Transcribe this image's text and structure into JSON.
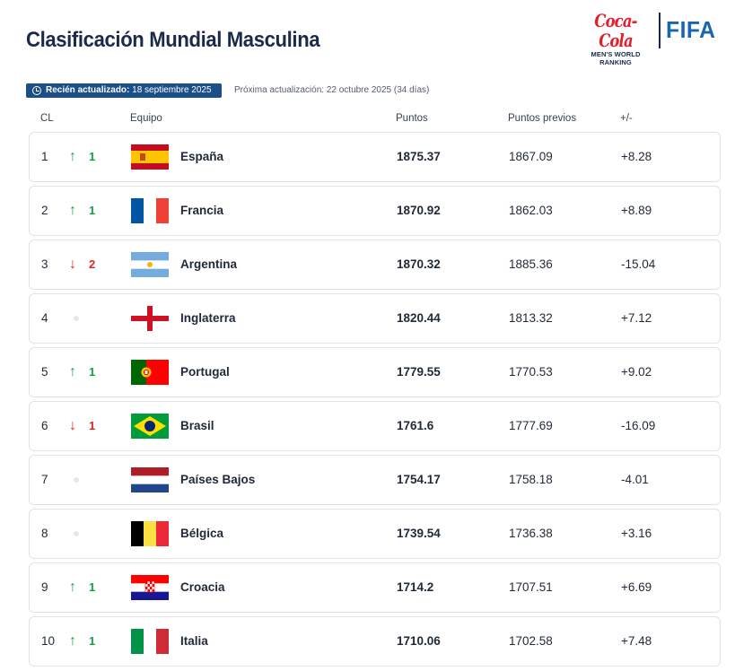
{
  "page": {
    "title": "Clasificación Mundial Masculina"
  },
  "brand": {
    "coca_cola": "Coca-Cola",
    "ranking_line1": "MEN'S WORLD",
    "ranking_line2": "RANKING",
    "fifa": "FIFA"
  },
  "update": {
    "badge_label": "Recién actualizado:",
    "badge_date": "18 septiembre 2025",
    "next_text": "Próxima actualización: 22 octubre 2025 (34 días)"
  },
  "table": {
    "headers": {
      "rank": "CL",
      "team": "Equipo",
      "points": "Puntos",
      "prev_points": "Puntos previos",
      "diff": "+/-"
    },
    "rows": [
      {
        "rank": "1",
        "move_dir": "up",
        "move": "1",
        "team": "España",
        "flag": "spain-flag",
        "points": "1875.37",
        "prev_points": "1867.09",
        "diff": "+8.28"
      },
      {
        "rank": "2",
        "move_dir": "up",
        "move": "1",
        "team": "Francia",
        "flag": "france-flag",
        "points": "1870.92",
        "prev_points": "1862.03",
        "diff": "+8.89"
      },
      {
        "rank": "3",
        "move_dir": "down",
        "move": "2",
        "team": "Argentina",
        "flag": "argentina-flag",
        "points": "1870.32",
        "prev_points": "1885.36",
        "diff": "-15.04"
      },
      {
        "rank": "4",
        "move_dir": "none",
        "move": "",
        "team": "Inglaterra",
        "flag": "england-flag",
        "points": "1820.44",
        "prev_points": "1813.32",
        "diff": "+7.12"
      },
      {
        "rank": "5",
        "move_dir": "up",
        "move": "1",
        "team": "Portugal",
        "flag": "portugal-flag",
        "points": "1779.55",
        "prev_points": "1770.53",
        "diff": "+9.02"
      },
      {
        "rank": "6",
        "move_dir": "down",
        "move": "1",
        "team": "Brasil",
        "flag": "brazil-flag",
        "points": "1761.6",
        "prev_points": "1777.69",
        "diff": "-16.09"
      },
      {
        "rank": "7",
        "move_dir": "none",
        "move": "",
        "team": "Países Bajos",
        "flag": "netherlands-flag",
        "points": "1754.17",
        "prev_points": "1758.18",
        "diff": "-4.01"
      },
      {
        "rank": "8",
        "move_dir": "none",
        "move": "",
        "team": "Bélgica",
        "flag": "belgium-flag",
        "points": "1739.54",
        "prev_points": "1736.38",
        "diff": "+3.16"
      },
      {
        "rank": "9",
        "move_dir": "up",
        "move": "1",
        "team": "Croacia",
        "flag": "croatia-flag",
        "points": "1714.2",
        "prev_points": "1707.51",
        "diff": "+6.69"
      },
      {
        "rank": "10",
        "move_dir": "up",
        "move": "1",
        "team": "Italia",
        "flag": "italy-flag",
        "points": "1710.06",
        "prev_points": "1702.58",
        "diff": "+7.48"
      }
    ]
  },
  "colors": {
    "title": "#1b2a4a",
    "badge_bg": "#1b4f8a",
    "up": "#16a34a",
    "down": "#dc2626",
    "fifa_blue": "#1b66b1",
    "coca_cola_red": "#e41e2b"
  }
}
